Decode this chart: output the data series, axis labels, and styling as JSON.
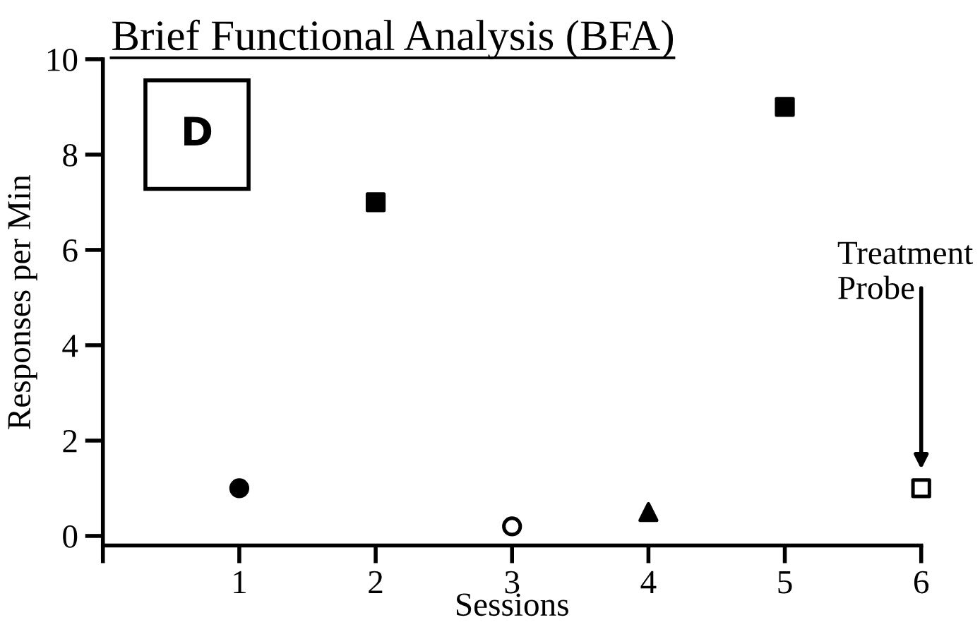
{
  "chart_data": {
    "type": "scatter",
    "title": "Brief Functional Analysis (BFA)",
    "xlabel": "Sessions",
    "ylabel": "Responses per Min",
    "xlim": [
      0,
      6
    ],
    "xticks": [
      {
        "value": 0,
        "label": null
      },
      1,
      2,
      3,
      4,
      5,
      6
    ],
    "ylim": [
      -0.2,
      10
    ],
    "yticks": [
      0,
      2,
      4,
      6,
      8,
      10
    ],
    "grid": false,
    "series": [
      {
        "color": "#000000",
        "marker": "circle",
        "x": [
          1
        ],
        "values": [
          1.0
        ]
      },
      {
        "color": "#000000",
        "marker": "square",
        "x": [
          2,
          5
        ],
        "values": [
          7.0,
          9.0
        ]
      },
      {
        "color": "#ffffff",
        "marker": "circle",
        "x": [
          3
        ],
        "values": [
          0.2
        ]
      },
      {
        "color": "#000000",
        "marker": "triangle",
        "x": [
          4
        ],
        "values": [
          0.5
        ]
      },
      {
        "color": "#ffffff",
        "marker": "square",
        "x": [
          6
        ],
        "values": [
          1.0
        ]
      }
    ],
    "annotations": [
      "D",
      "Treatment\nProbe"
    ]
  }
}
